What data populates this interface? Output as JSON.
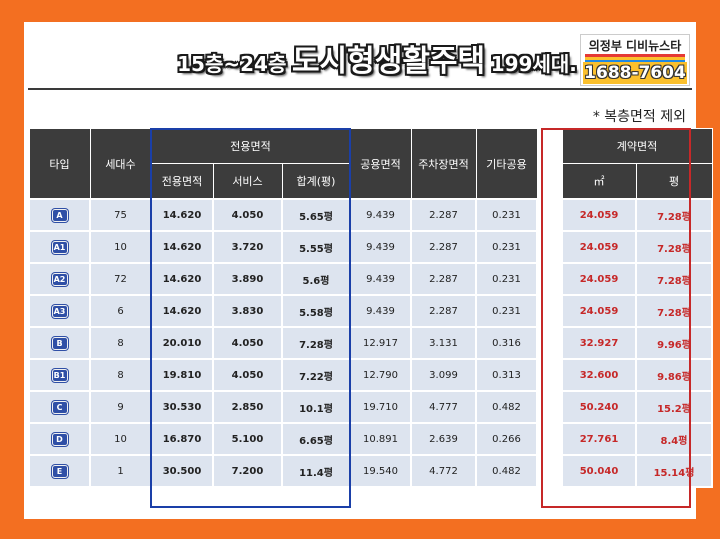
{
  "title": {
    "prefix": "15층~24층",
    "main": "도시형생활주택",
    "suffix": "199세대."
  },
  "logo": {
    "name": "의정부 디비뉴스타",
    "phone": "1688-7604"
  },
  "note": "* 복층면적 제외",
  "headers": {
    "type": "타입",
    "households": "세대수",
    "exclusive_group": "전용면적",
    "exclusive": "전용면적",
    "service": "서비스",
    "total_pyeong": "합계(평)",
    "common": "공용면적",
    "parking": "주차장면적",
    "other_common": "기타공용",
    "contract_group": "계약면적",
    "contract_m2": "㎡",
    "contract_pyeong": "평"
  },
  "rows": [
    {
      "type": "A",
      "households": "75",
      "exclusive": "14.620",
      "service": "4.050",
      "total": "5.65평",
      "common": "9.439",
      "parking": "2.287",
      "other": "0.231",
      "contract_m2": "24.059",
      "contract_py": "7.28평"
    },
    {
      "type": "A1",
      "households": "10",
      "exclusive": "14.620",
      "service": "3.720",
      "total": "5.55평",
      "common": "9.439",
      "parking": "2.287",
      "other": "0.231",
      "contract_m2": "24.059",
      "contract_py": "7.28평"
    },
    {
      "type": "A2",
      "households": "72",
      "exclusive": "14.620",
      "service": "3.890",
      "total": "5.6평",
      "common": "9.439",
      "parking": "2.287",
      "other": "0.231",
      "contract_m2": "24.059",
      "contract_py": "7.28평"
    },
    {
      "type": "A3",
      "households": "6",
      "exclusive": "14.620",
      "service": "3.830",
      "total": "5.58평",
      "common": "9.439",
      "parking": "2.287",
      "other": "0.231",
      "contract_m2": "24.059",
      "contract_py": "7.28평"
    },
    {
      "type": "B",
      "households": "8",
      "exclusive": "20.010",
      "service": "4.050",
      "total": "7.28평",
      "common": "12.917",
      "parking": "3.131",
      "other": "0.316",
      "contract_m2": "32.927",
      "contract_py": "9.96평"
    },
    {
      "type": "B1",
      "households": "8",
      "exclusive": "19.810",
      "service": "4.050",
      "total": "7.22평",
      "common": "12.790",
      "parking": "3.099",
      "other": "0.313",
      "contract_m2": "32.600",
      "contract_py": "9.86평"
    },
    {
      "type": "C",
      "households": "9",
      "exclusive": "30.530",
      "service": "2.850",
      "total": "10.1평",
      "common": "19.710",
      "parking": "4.777",
      "other": "0.482",
      "contract_m2": "50.240",
      "contract_py": "15.2평"
    },
    {
      "type": "D",
      "households": "10",
      "exclusive": "16.870",
      "service": "5.100",
      "total": "6.65평",
      "common": "10.891",
      "parking": "2.639",
      "other": "0.266",
      "contract_m2": "27.761",
      "contract_py": "8.4평"
    },
    {
      "type": "E",
      "households": "1",
      "exclusive": "30.500",
      "service": "7.200",
      "total": "11.4평",
      "common": "19.540",
      "parking": "4.772",
      "other": "0.482",
      "contract_m2": "50.040",
      "contract_py": "15.14평"
    }
  ],
  "colors": {
    "frame": "#f36f21",
    "header_bg": "#3c3c3c",
    "cell_bg": "#dde4ef",
    "exclusive_box": "#1a3fa8",
    "contract_box": "#c62828",
    "badge": "#2f4fa6"
  }
}
